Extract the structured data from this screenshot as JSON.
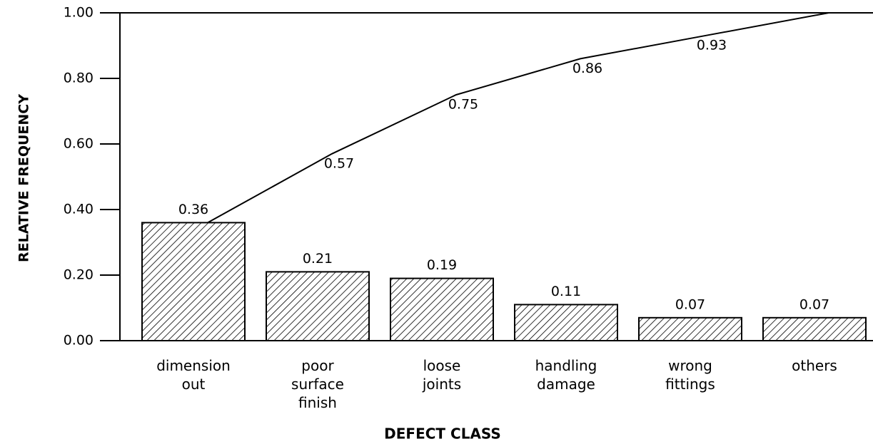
{
  "chart_data": {
    "type": "bar",
    "xlabel": "DEFECT CLASS",
    "ylabel": "RELATIVE FREQUENCY",
    "categories": [
      "dimension out",
      "poor surface finish",
      "loose joints",
      "handling damage",
      "wrong fittings",
      "others"
    ],
    "values": [
      0.36,
      0.21,
      0.19,
      0.11,
      0.07,
      0.07
    ],
    "color": "#000000",
    "cumulative": {
      "values": [
        0.36,
        0.57,
        0.75,
        0.86,
        0.93,
        1.0
      ],
      "value_labels": [
        null,
        "0.57",
        "0.75",
        "0.86",
        "0.93",
        null
      ],
      "color": "#000000"
    },
    "ylim": [
      0,
      1
    ],
    "yticks": [
      {
        "value": 0,
        "label": "0.00"
      },
      {
        "value": 0.2,
        "label": "0.20"
      },
      {
        "value": 0.4,
        "label": "0.40"
      },
      {
        "value": 0.6,
        "label": "0.60"
      },
      {
        "value": 0.8,
        "label": "0.80"
      },
      {
        "value": 1,
        "label": "1.00"
      }
    ]
  }
}
